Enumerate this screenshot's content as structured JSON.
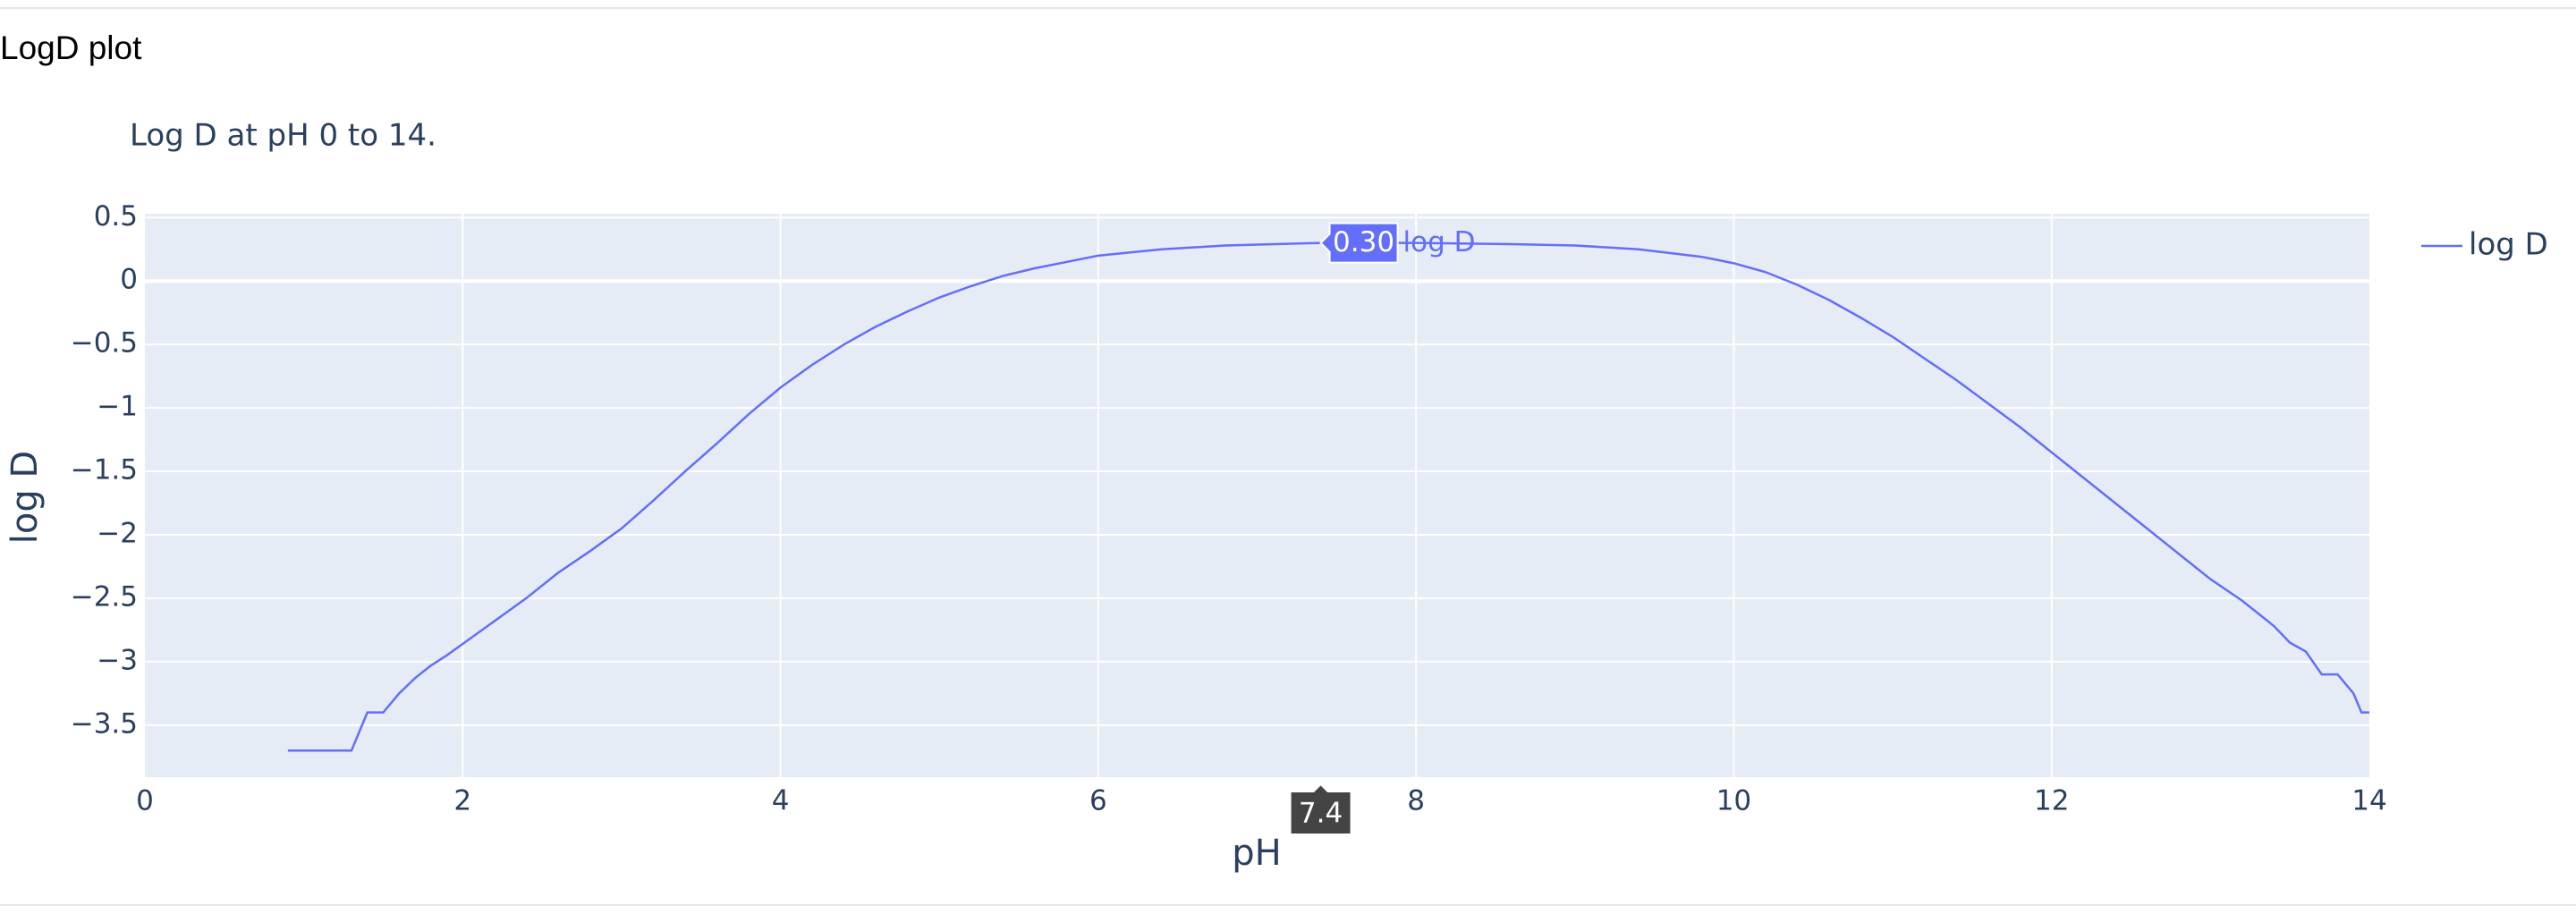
{
  "chart_data": {
    "type": "line",
    "title": "LogD plot",
    "subtitle": "Log D at pH 0 to 14.",
    "x_label": "pH",
    "y_label": "log D",
    "xlim": [
      0,
      14
    ],
    "ylim": [
      -3.91,
      0.53
    ],
    "xticks": [
      0,
      2,
      4,
      6,
      8,
      10,
      12,
      14
    ],
    "yticks": [
      0.5,
      0,
      {
        "value": -0.5,
        "label": "−0.5"
      },
      {
        "value": -1,
        "label": "−1"
      },
      {
        "value": -1.5,
        "label": "−1.5"
      },
      {
        "value": -2,
        "label": "−2"
      },
      {
        "value": -2.5,
        "label": "−2.5"
      },
      {
        "value": -3,
        "label": "−3"
      },
      {
        "value": -3.5,
        "label": "−3.5"
      }
    ],
    "grid": true,
    "legend": "right",
    "series": [
      {
        "name": "log D",
        "color": "#636efa",
        "x": [
          0.9,
          1.3,
          1.4,
          1.5,
          1.6,
          1.7,
          1.8,
          1.9,
          2.0,
          2.2,
          2.4,
          2.6,
          2.8,
          3.0,
          3.2,
          3.4,
          3.6,
          3.8,
          4.0,
          4.2,
          4.4,
          4.6,
          4.8,
          5.0,
          5.2,
          5.4,
          5.6,
          5.8,
          6.0,
          6.4,
          6.8,
          7.4,
          8.0,
          8.6,
          9.0,
          9.4,
          9.8,
          10.0,
          10.2,
          10.4,
          10.6,
          10.8,
          11.0,
          11.4,
          11.8,
          12.2,
          12.6,
          13.0,
          13.2,
          13.4,
          13.5,
          13.6,
          13.7,
          13.8,
          13.9,
          13.95,
          14.0
        ],
        "values": [
          -3.7,
          -3.7,
          -3.4,
          -3.4,
          -3.25,
          -3.13,
          -3.03,
          -2.95,
          -2.86,
          -2.68,
          -2.5,
          -2.3,
          -2.13,
          -1.95,
          -1.73,
          -1.5,
          -1.28,
          -1.05,
          -0.84,
          -0.66,
          -0.5,
          -0.36,
          -0.24,
          -0.13,
          -0.04,
          0.04,
          0.1,
          0.15,
          0.2,
          0.25,
          0.28,
          0.3,
          0.3,
          0.29,
          0.28,
          0.25,
          0.19,
          0.14,
          0.07,
          -0.03,
          -0.15,
          -0.29,
          -0.44,
          -0.78,
          -1.15,
          -1.55,
          -1.95,
          -2.35,
          -2.52,
          -2.72,
          -2.85,
          -2.92,
          -3.1,
          -3.1,
          -3.25,
          -3.4,
          -3.4
        ]
      }
    ],
    "hover": {
      "x": 7.4,
      "x_label": "7.4",
      "y": 0.3,
      "y_label": "0.30"
    }
  }
}
